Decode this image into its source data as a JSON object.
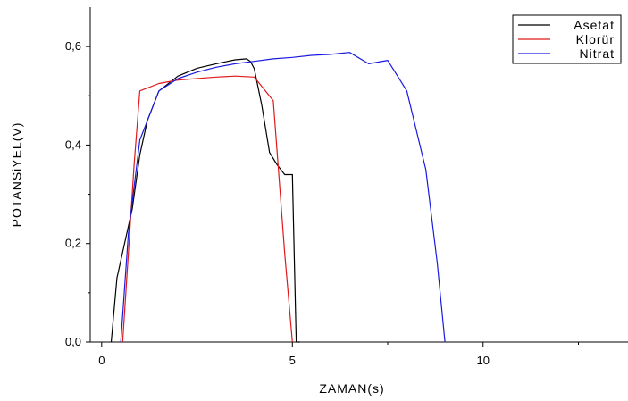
{
  "chart_data": {
    "type": "line",
    "xlabel": "ZAMAN(s)",
    "ylabel": "POTANSiYEL(V)",
    "xlim": [
      -0.3,
      13.8
    ],
    "ylim": [
      0,
      0.68
    ],
    "xticks": [
      0,
      5,
      10
    ],
    "xtick_labels": [
      "0",
      "5",
      "10"
    ],
    "yticks": [
      0,
      0.2,
      0.4,
      0.6
    ],
    "ytick_labels": [
      "0,0",
      "0,2",
      "0,4",
      "0,6"
    ],
    "grid": false,
    "legend_position": "top-right",
    "series": [
      {
        "name": "Asetat",
        "color": "#000000",
        "x": [
          0.25,
          0.4,
          0.6,
          0.8,
          1.0,
          1.2,
          1.5,
          2.0,
          2.5,
          3.0,
          3.5,
          3.8,
          3.9,
          4.0,
          4.2,
          4.4,
          4.6,
          4.8,
          4.9,
          5.0,
          5.1,
          5.2
        ],
        "y": [
          0.0,
          0.13,
          0.2,
          0.27,
          0.38,
          0.45,
          0.51,
          0.54,
          0.556,
          0.565,
          0.573,
          0.575,
          0.57,
          0.555,
          0.48,
          0.385,
          0.36,
          0.34,
          0.34,
          0.34,
          0.0,
          0.0
        ]
      },
      {
        "name": "Klorür",
        "color": "#e0191b",
        "x": [
          0.55,
          0.7,
          0.85,
          1.0,
          1.5,
          2.0,
          3.0,
          3.5,
          4.0,
          4.5,
          4.8,
          5.0
        ],
        "y": [
          0.0,
          0.18,
          0.36,
          0.51,
          0.525,
          0.532,
          0.538,
          0.54,
          0.538,
          0.49,
          0.18,
          0.0
        ]
      },
      {
        "name": "Nitrat",
        "color": "#1a1ae0",
        "x": [
          0.5,
          0.7,
          1.0,
          1.5,
          2.0,
          2.5,
          3.0,
          3.5,
          4.0,
          4.5,
          5.0,
          5.5,
          6.0,
          6.5,
          7.0,
          7.5,
          8.0,
          8.5,
          8.8,
          9.0
        ],
        "y": [
          0.0,
          0.22,
          0.41,
          0.51,
          0.535,
          0.548,
          0.558,
          0.565,
          0.57,
          0.575,
          0.578,
          0.582,
          0.584,
          0.588,
          0.565,
          0.572,
          0.51,
          0.35,
          0.16,
          0.0
        ]
      }
    ]
  }
}
